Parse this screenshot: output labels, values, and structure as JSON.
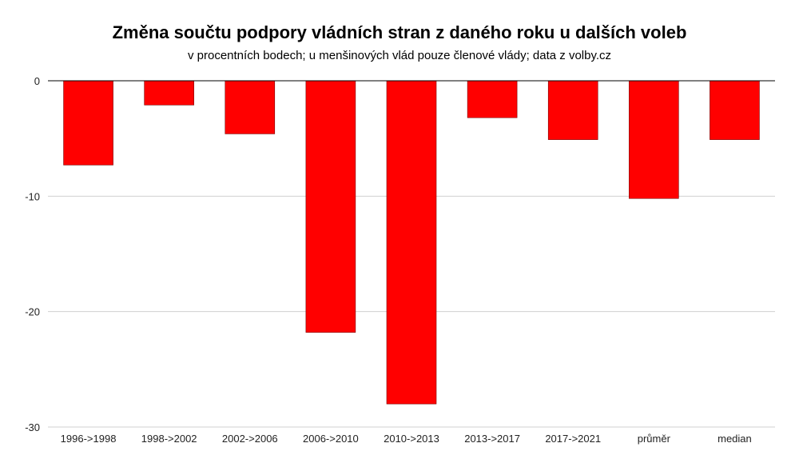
{
  "chart_data": {
    "type": "bar",
    "title": "Změna součtu podpory vládních stran z daného roku u dalších voleb",
    "subtitle": "v procentních bodech; u menšinových vlád pouze členové vlády; data z volby.cz",
    "categories": [
      "1996->1998",
      "1998->2002",
      "2002->2006",
      "2006->2010",
      "2010->2013",
      "2013->2017",
      "2017->2021",
      "průměr",
      "median"
    ],
    "values": [
      -7.3,
      -2.1,
      -4.6,
      -21.8,
      -28.0,
      -3.2,
      -5.1,
      -10.2,
      -5.1
    ],
    "ylim": [
      -30,
      0
    ],
    "yticks": [
      "0",
      "-10",
      "-20",
      "-30"
    ],
    "grid": true,
    "bar_color": "#ff0000",
    "gridline_color": "#d0d0d0"
  }
}
